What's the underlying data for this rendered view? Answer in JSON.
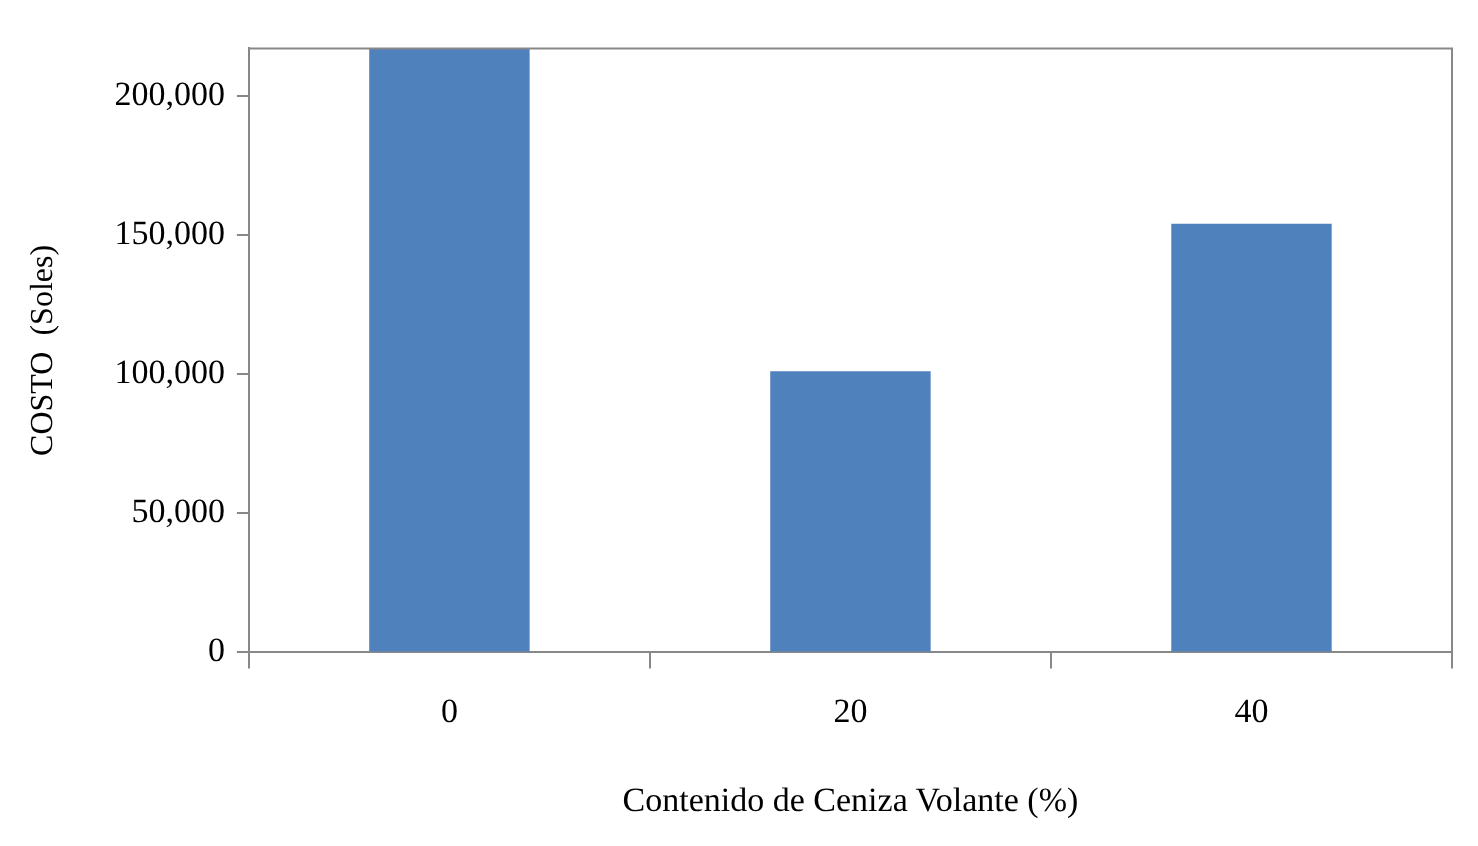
{
  "chart_data": {
    "type": "bar",
    "xlabel": "Contenido de Ceniza Volante (%)",
    "ylabel": "COSTO  (Soles)",
    "categories": [
      "0",
      "20",
      "40"
    ],
    "values": [
      217000,
      101000,
      154000
    ],
    "color": "#4f81bd",
    "ylim": [
      0,
      217000
    ],
    "yticks": [
      {
        "value": 0,
        "label": "0"
      },
      {
        "value": 50000,
        "label": "50,000"
      },
      {
        "value": 100000,
        "label": "100,000"
      },
      {
        "value": 150000,
        "label": "150,000"
      },
      {
        "value": 200000,
        "label": "200,000"
      }
    ],
    "grid": false,
    "legend": false
  }
}
